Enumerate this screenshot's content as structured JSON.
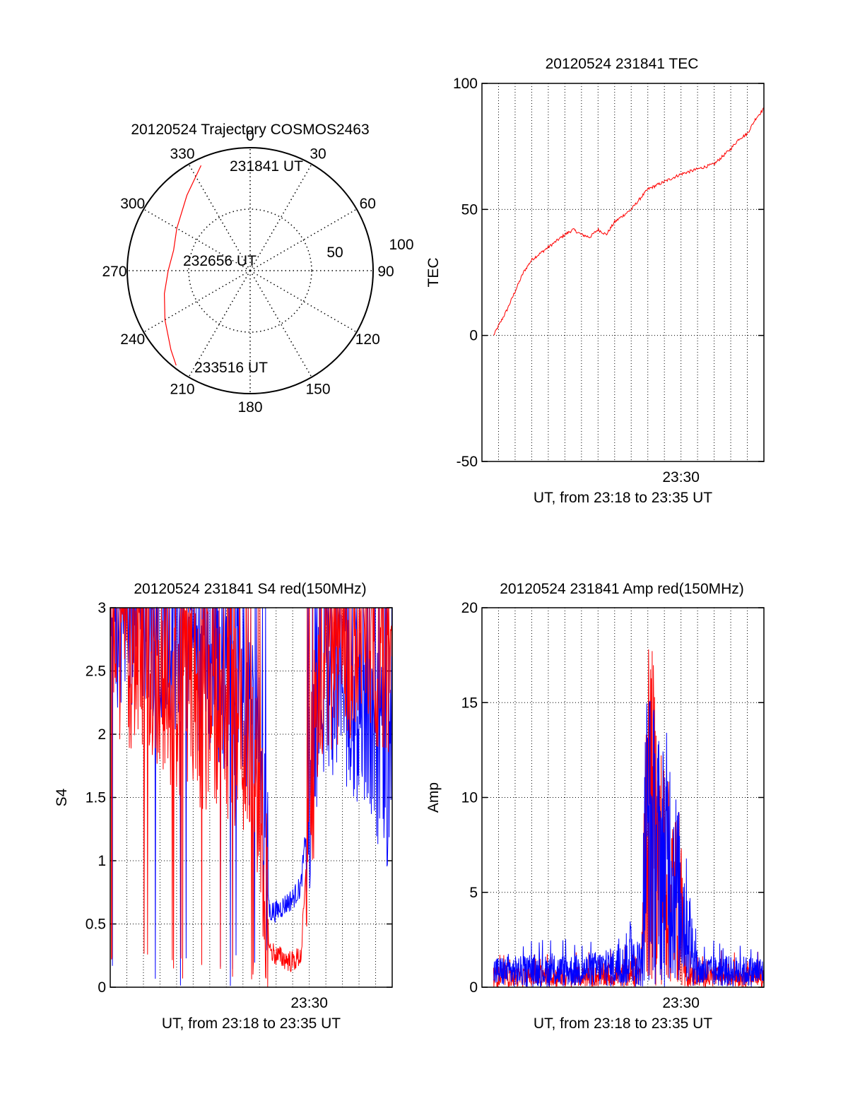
{
  "colors": {
    "red": "#ff0000",
    "blue": "#0000ff",
    "grid": "#000000"
  },
  "polar": {
    "title": "20120524 Trajectory COSMOS2463",
    "azimuth_labels": [
      "0",
      "30",
      "60",
      "90",
      "120",
      "150",
      "180",
      "210",
      "240",
      "270",
      "300",
      "330"
    ],
    "radius_labels": [
      "50",
      "100"
    ],
    "annotations": {
      "start": "231841 UT",
      "mid": "232656 UT",
      "end": "233516 UT"
    }
  },
  "chart_data": [
    {
      "id": "polar_trajectory",
      "type": "polar",
      "title": "20120524 Trajectory COSMOS2463",
      "note": "Red trajectory path; azimuth in degrees, zenith angle in degrees (0 center, 90 edge)",
      "series": [
        {
          "color": "#ff0000",
          "points_az_zen": [
            [
              335,
              85
            ],
            [
              320,
              72
            ],
            [
              300,
              62
            ],
            [
              285,
              58
            ],
            [
              270,
              60
            ],
            [
              255,
              65
            ],
            [
              240,
              72
            ],
            [
              225,
              82
            ],
            [
              218,
              88
            ]
          ]
        }
      ],
      "annotations": [
        {
          "text": "231841 UT",
          "az": 335,
          "zen": 85
        },
        {
          "text": "232656 UT",
          "az": 270,
          "zen": 5
        },
        {
          "text": "233516 UT",
          "az": 218,
          "zen": 88
        }
      ]
    },
    {
      "id": "tec",
      "type": "line",
      "title": "20120524 231841 TEC",
      "xlabel": "UT, from 23:18 to 23:35 UT",
      "ylabel": "TEC",
      "x_tick_label": "23:30",
      "ylim": [
        -50,
        100
      ],
      "yticks": [
        "-50",
        "0",
        "50",
        "100"
      ],
      "x_unit": "minutes after 23:18",
      "x_range": [
        0,
        17
      ],
      "series": [
        {
          "color": "#ff0000",
          "x": [
            0.7,
            1.5,
            2.5,
            3.0,
            4.0,
            5.0,
            5.5,
            6.0,
            6.5,
            7.0,
            7.5,
            8.0,
            9.0,
            10.0,
            11.0,
            12.0,
            13.0,
            14.0,
            15.0,
            15.5,
            16.0,
            16.5,
            17.0
          ],
          "y": [
            0,
            10,
            25,
            30,
            35,
            40,
            42,
            40,
            39,
            42,
            40,
            45,
            50,
            58,
            61,
            64,
            66,
            68,
            74,
            78,
            80,
            86,
            90
          ]
        }
      ]
    },
    {
      "id": "s4",
      "type": "line",
      "title": "20120524 231841 S4 red(150MHz)",
      "xlabel": "UT, from 23:18 to 23:35 UT",
      "ylabel": "S4",
      "x_tick_label": "23:30",
      "ylim": [
        0,
        3
      ],
      "yticks": [
        "0",
        "0.5",
        "1",
        "1.5",
        "2",
        "2.5",
        "3"
      ],
      "x_unit": "minutes after 23:18",
      "x_range": [
        0,
        17
      ],
      "series": [
        {
          "color": "#0000ff",
          "x": [
            0,
            1,
            2,
            3,
            4,
            5,
            6,
            7,
            8,
            9,
            9.6,
            10,
            11,
            11.5,
            12,
            12.5,
            13,
            14,
            15,
            16,
            17
          ],
          "y": [
            3.0,
            3.0,
            3.0,
            2.9,
            2.8,
            2.7,
            2.6,
            2.5,
            2.4,
            1.8,
            0.6,
            0.6,
            0.7,
            0.8,
            1.5,
            2.3,
            2.5,
            2.4,
            2.2,
            2.0,
            1.5
          ]
        },
        {
          "color": "#ff0000",
          "x": [
            0,
            1,
            2,
            3,
            4,
            5,
            6,
            7,
            8,
            9,
            9.6,
            10,
            11,
            11.5,
            12,
            12.5,
            13,
            14,
            15,
            16,
            17
          ],
          "y": [
            2.8,
            2.7,
            2.6,
            2.5,
            2.3,
            2.2,
            2.2,
            2.1,
            2.0,
            1.6,
            0.3,
            0.25,
            0.2,
            0.25,
            1.3,
            2.2,
            2.6,
            2.7,
            2.8,
            2.7,
            2.6
          ]
        }
      ]
    },
    {
      "id": "amp",
      "type": "line",
      "title": "20120524 231841 Amp red(150MHz)",
      "xlabel": "UT, from 23:18 to 23:35 UT",
      "ylabel": "Amp",
      "x_tick_label": "23:30",
      "ylim": [
        0,
        20
      ],
      "yticks": [
        "0",
        "5",
        "10",
        "15",
        "20"
      ],
      "x_unit": "minutes after 23:18",
      "x_range": [
        0,
        17
      ],
      "series": [
        {
          "color": "#ff0000",
          "x": [
            0.7,
            8.0,
            9.6,
            9.9,
            10.2,
            10.6,
            11.0,
            11.5,
            12.0,
            12.3,
            13,
            17
          ],
          "y": [
            1.0,
            1.0,
            1.5,
            15.5,
            17.0,
            13.0,
            11.0,
            9.0,
            8.5,
            1.0,
            1.0,
            1.0
          ]
        },
        {
          "color": "#0000ff",
          "x": [
            0.7,
            3,
            6,
            8.5,
            9.0,
            9.6,
            9.9,
            10.3,
            10.8,
            11.3,
            11.8,
            12.3,
            13,
            15,
            17
          ],
          "y": [
            1.5,
            1.5,
            1.6,
            2.0,
            3.5,
            2.0,
            15.5,
            14.0,
            12.0,
            12.5,
            9.0,
            6.5,
            1.5,
            1.5,
            1.5
          ]
        }
      ]
    }
  ]
}
